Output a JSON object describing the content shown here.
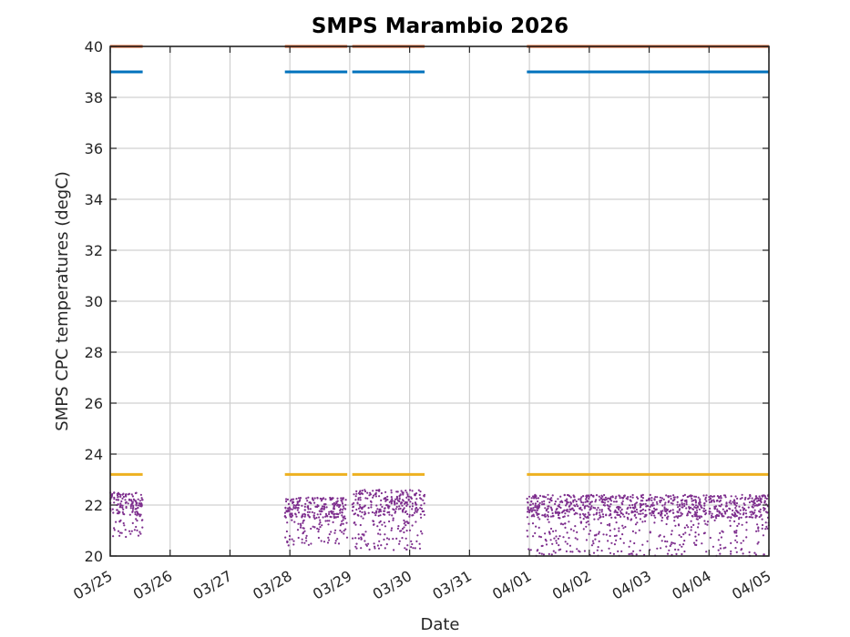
{
  "chart_data": {
    "type": "scatter",
    "title": "SMPS Marambio 2026",
    "xlabel": "Date",
    "ylabel": "SMPS CPC temperatures (degC)",
    "xlim": [
      "2026-03-25",
      "2026-04-05"
    ],
    "ylim": [
      20,
      40
    ],
    "x_ticks": [
      "03/25",
      "03/26",
      "03/27",
      "03/28",
      "03/29",
      "03/30",
      "03/31",
      "04/01",
      "04/02",
      "04/03",
      "04/04",
      "04/05"
    ],
    "y_ticks": [
      20,
      22,
      24,
      26,
      28,
      30,
      32,
      34,
      36,
      38,
      40
    ],
    "grid": true,
    "colors": {
      "series1": "#D95319",
      "series2": "#0072BD",
      "series3": "#EDB120",
      "series4": "#7E2F8E"
    },
    "series": [
      {
        "id": "series1",
        "level": 40.0,
        "segments": [
          [
            "2026-03-25T00:00",
            "2026-03-25T13:00"
          ],
          [
            "2026-03-27T22:00",
            "2026-03-28T23:00"
          ],
          [
            "2026-03-29T01:00",
            "2026-03-30T06:00"
          ],
          [
            "2026-03-31T23:00",
            "2026-04-05T00:00"
          ]
        ]
      },
      {
        "id": "series2",
        "level": 39.0,
        "segments": [
          [
            "2026-03-25T00:00",
            "2026-03-25T13:00"
          ],
          [
            "2026-03-27T22:00",
            "2026-03-28T23:00"
          ],
          [
            "2026-03-29T01:00",
            "2026-03-30T06:00"
          ],
          [
            "2026-03-31T23:00",
            "2026-04-05T00:00"
          ]
        ]
      },
      {
        "id": "series3",
        "level": 23.2,
        "segments": [
          [
            "2026-03-25T00:00",
            "2026-03-25T13:00"
          ],
          [
            "2026-03-27T22:00",
            "2026-03-28T23:00"
          ],
          [
            "2026-03-29T01:00",
            "2026-03-30T06:00"
          ],
          [
            "2026-03-31T23:00",
            "2026-04-05T00:00"
          ]
        ]
      },
      {
        "id": "series4",
        "scatter_blocks": [
          {
            "start": "2026-03-25T00:00",
            "end": "2026-03-25T13:00",
            "typical_range": [
              21.6,
              22.5
            ],
            "low_range": [
              20.7,
              21.6
            ]
          },
          {
            "start": "2026-03-27T22:00",
            "end": "2026-03-28T23:00",
            "typical_range": [
              21.5,
              22.3
            ],
            "low_range": [
              20.4,
              21.5
            ]
          },
          {
            "start": "2026-03-29T01:00",
            "end": "2026-03-30T06:00",
            "typical_range": [
              21.6,
              22.6
            ],
            "low_range": [
              20.2,
              21.6
            ]
          },
          {
            "start": "2026-03-31T23:00",
            "end": "2026-04-05T00:00",
            "typical_range": [
              21.5,
              22.4
            ],
            "low_range": [
              20.0,
              21.5
            ]
          }
        ]
      }
    ]
  }
}
